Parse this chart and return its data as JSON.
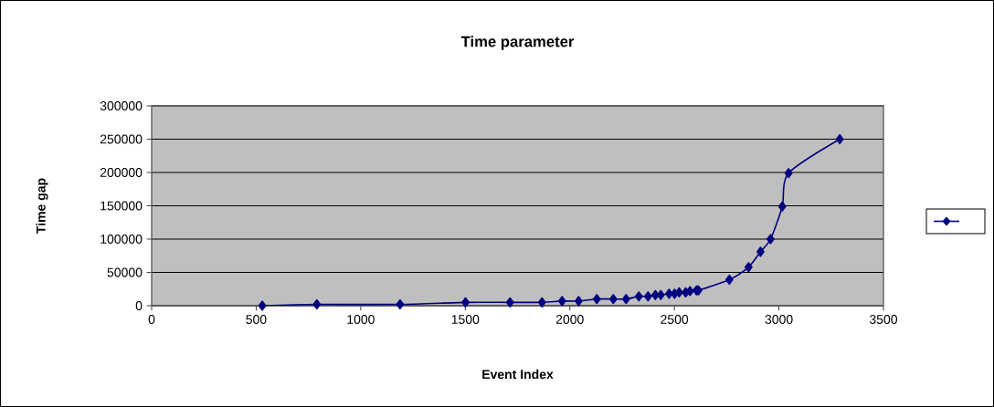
{
  "chart_data": {
    "type": "line",
    "title": "Time parameter",
    "xlabel": "Event Index",
    "ylabel": "Time gap",
    "x": [
      529,
      790,
      1188,
      1501,
      1714,
      1867,
      1963,
      2042,
      2129,
      2208,
      2269,
      2330,
      2374,
      2409,
      2435,
      2475,
      2501,
      2523,
      2554,
      2575,
      2606,
      2615,
      2763,
      2855,
      2912,
      2960,
      3016,
      3046,
      3291
    ],
    "series": [
      {
        "color": "#000080",
        "values": [
          0,
          2000,
          2000,
          5000,
          5000,
          5000,
          7000,
          7000,
          10000,
          10000,
          10000,
          14000,
          14000,
          16000,
          16000,
          18000,
          18000,
          20000,
          20000,
          22000,
          23000,
          23000,
          39000,
          58000,
          81000,
          100000,
          149000,
          199000,
          250000
        ]
      }
    ],
    "xlim": [
      0,
      3500
    ],
    "xticks": [
      0,
      500,
      1000,
      1500,
      2000,
      2500,
      3000,
      3500
    ],
    "ylim": [
      0,
      300000
    ],
    "yticks": [
      0,
      50000,
      100000,
      150000,
      200000,
      250000,
      300000
    ],
    "grid": "y",
    "marker": "diamond",
    "line_style": "solid"
  }
}
